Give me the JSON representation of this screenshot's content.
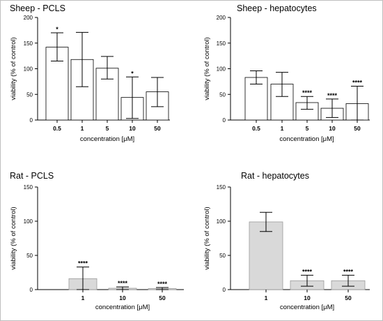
{
  "chart_data": [
    {
      "type": "bar",
      "title": "Sheep - PCLS",
      "xlabel": "concentration [μM]",
      "ylabel": "viability (% of control)",
      "categories": [
        "0.5",
        "1",
        "5",
        "10",
        "50"
      ],
      "values": [
        142,
        118,
        101,
        44,
        55
      ],
      "errors": [
        [
          115,
          170
        ],
        [
          65,
          171
        ],
        [
          80,
          124
        ],
        [
          3,
          84
        ],
        [
          26,
          83
        ]
      ],
      "significance": [
        "*",
        "",
        "",
        "*",
        ""
      ],
      "ylim": [
        0,
        200
      ],
      "yticks": [
        "0",
        "50",
        "100",
        "150",
        "200"
      ],
      "bar_fill": "#ffffff"
    },
    {
      "type": "bar",
      "title": "Sheep - hepatocytes",
      "xlabel": "concentration [μM]",
      "ylabel": "viability (% of control)",
      "categories": [
        "0.5",
        "1",
        "5",
        "10",
        "50"
      ],
      "values": [
        83,
        70,
        34,
        23,
        32
      ],
      "errors": [
        [
          70,
          96
        ],
        [
          46,
          93
        ],
        [
          21,
          46
        ],
        [
          5,
          41
        ],
        [
          0,
          66
        ]
      ],
      "significance": [
        "",
        "",
        "****",
        "****",
        "****"
      ],
      "ylim": [
        0,
        200
      ],
      "yticks": [
        "0",
        "50",
        "100",
        "150",
        "200"
      ],
      "bar_fill": "#ffffff"
    },
    {
      "type": "bar",
      "title": "Rat - PCLS",
      "xlabel": "concentration [μM]",
      "ylabel": "viability (% of control)",
      "categories": [
        "1",
        "10",
        "50"
      ],
      "values": [
        16,
        2,
        1.5
      ],
      "errors": [
        [
          0,
          33
        ],
        [
          0,
          4
        ],
        [
          0,
          3
        ]
      ],
      "significance": [
        "****",
        "****",
        "****"
      ],
      "ylim": [
        0,
        150
      ],
      "yticks": [
        "0",
        "50",
        "100",
        "150"
      ],
      "bar_fill": "#d9d9d9"
    },
    {
      "type": "bar",
      "title": "Rat - hepatocytes",
      "xlabel": "concentration [μM]",
      "ylabel": "viability (% of control)",
      "categories": [
        "1",
        "10",
        "50"
      ],
      "values": [
        99,
        13,
        13
      ],
      "errors": [
        [
          85,
          113
        ],
        [
          5,
          21
        ],
        [
          5,
          21
        ]
      ],
      "significance": [
        "",
        "****",
        "****"
      ],
      "ylim": [
        0,
        150
      ],
      "yticks": [
        "0",
        "50",
        "100",
        "150"
      ],
      "bar_fill": "#d9d9d9"
    }
  ]
}
